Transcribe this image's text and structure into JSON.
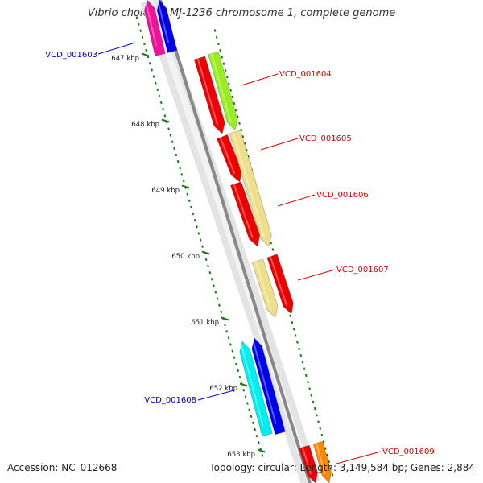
{
  "title": "Vibrio cholerae MJ-1236 chromosome 1, complete genome",
  "footer": {
    "accession": "Accession: NC_012668",
    "summary": "Topology: circular; Length: 3,149,584 bp; Genes: 2,884"
  },
  "colors": {
    "backbone": "#888888",
    "tick": "#1a7a1a",
    "forward_label": "#dd0000",
    "reverse_label": "#0000cc"
  },
  "ticks": [
    {
      "label": "647 kbp"
    },
    {
      "label": "648 kbp"
    },
    {
      "label": "649 kbp"
    },
    {
      "label": "650 kbp"
    },
    {
      "label": "651 kbp"
    },
    {
      "label": "652 kbp"
    },
    {
      "label": "653 kbp"
    }
  ],
  "gene_labels": [
    {
      "text": "VCD_001603",
      "strand": "reverse"
    },
    {
      "text": "VCD_001604",
      "strand": "forward"
    },
    {
      "text": "VCD_001605",
      "strand": "forward"
    },
    {
      "text": "VCD_001606",
      "strand": "forward"
    },
    {
      "text": "VCD_001607",
      "strand": "forward"
    },
    {
      "text": "VCD_001608",
      "strand": "reverse"
    },
    {
      "text": "VCD_001609",
      "strand": "forward"
    }
  ],
  "features": [
    {
      "name": "gene-1603-blue",
      "color": "#0000ee",
      "strand": "reverse"
    },
    {
      "name": "cds-1603-magenta",
      "color": "#ee1199",
      "strand": "reverse"
    },
    {
      "name": "gene-1604-red",
      "color": "#ee0000",
      "strand": "forward"
    },
    {
      "name": "cds-1604-green",
      "color": "#99ee22",
      "strand": "forward"
    },
    {
      "name": "gene-1605-red",
      "color": "#ee0000",
      "strand": "forward"
    },
    {
      "name": "cds-1605-tan",
      "color": "#eee08a",
      "strand": "forward"
    },
    {
      "name": "gene-1606-red",
      "color": "#ee0000",
      "strand": "forward"
    },
    {
      "name": "cds-1606-tan",
      "color": "#eee08a",
      "strand": "forward"
    },
    {
      "name": "gene-1607-red",
      "color": "#ee0000",
      "strand": "forward"
    },
    {
      "name": "cds-1607-orange",
      "color": "#ff8800",
      "strand": "forward"
    },
    {
      "name": "gene-1608-blue",
      "color": "#0000ee",
      "strand": "reverse"
    },
    {
      "name": "cds-1608-cyan",
      "color": "#00eeee",
      "strand": "reverse"
    },
    {
      "name": "gene-1609-red",
      "color": "#ee0000",
      "strand": "forward"
    },
    {
      "name": "cds-1609-orange",
      "color": "#ff8800",
      "strand": "forward"
    }
  ]
}
